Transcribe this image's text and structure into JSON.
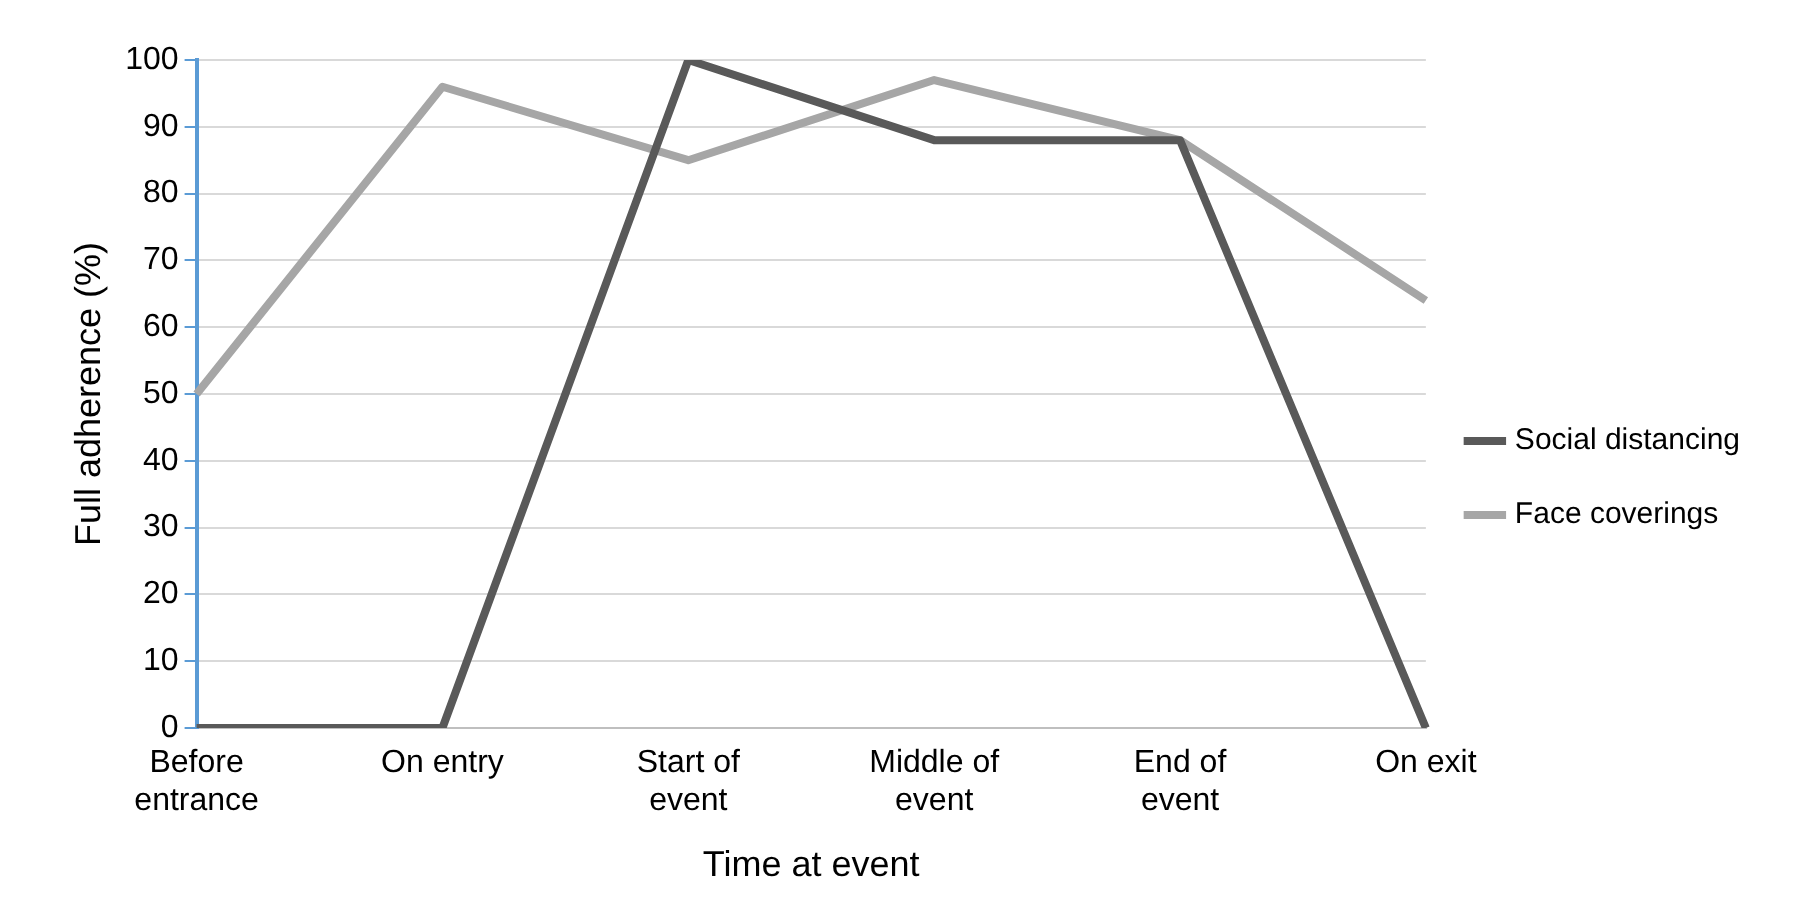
{
  "chart_data": {
    "type": "line",
    "xlabel": "Time at event",
    "ylabel": "Full adherence (%)",
    "categories": [
      "Before entrance",
      "On entry",
      "Start of event",
      "Middle of event",
      "End of event",
      "On exit"
    ],
    "series": [
      {
        "name": "Social distancing",
        "color": "#595959",
        "values": [
          0,
          0,
          100,
          88,
          88,
          0
        ]
      },
      {
        "name": "Face coverings",
        "color": "#a6a6a6",
        "values": [
          50,
          96,
          85,
          97,
          88,
          64
        ]
      }
    ],
    "ylim": [
      0,
      100
    ],
    "yticks": [
      0,
      10,
      20,
      30,
      40,
      50,
      60,
      70,
      80,
      90,
      100
    ],
    "grid": "y",
    "legend": "right",
    "marker": "none",
    "line_style": "solid"
  }
}
